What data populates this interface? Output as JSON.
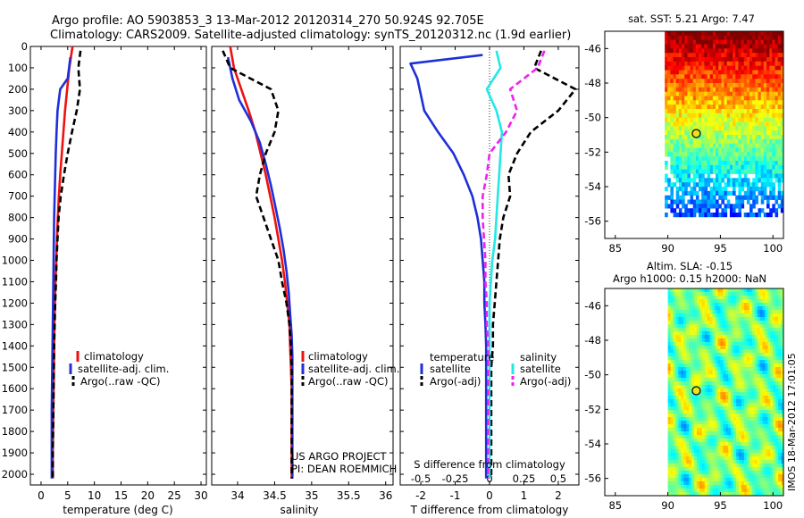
{
  "figure": {
    "title_line1": "Argo profile: AO 5903853_3 13-Mar-2012 20120314_270 50.924S 92.705E",
    "title_line2": "Climatology: CARS2009. Satellite-adjusted climatology: synTS_20120312.nc (1.9d earlier)",
    "project_line1": "US ARGO PROJECT",
    "project_line2": "PI: DEAN ROEMMICH",
    "side_stamp": "IMOS 18-Mar-2012 17:01:05"
  },
  "colors": {
    "climatology": "#ee1111",
    "satellite": "#1f2fd8",
    "argo": "#000000",
    "sal_satellite": "#22e8e8",
    "sal_argo": "#ee22ee",
    "axis": "#000000"
  },
  "chart_data": [
    {
      "id": "temperature",
      "type": "line",
      "xlabel": "temperature (deg C)",
      "ylabel": "",
      "xlim": [
        -2,
        31
      ],
      "ylim": [
        2050,
        0
      ],
      "xticks": [
        0,
        5,
        10,
        15,
        20,
        25,
        30
      ],
      "yticks": [
        0,
        100,
        200,
        300,
        400,
        500,
        600,
        700,
        800,
        900,
        1000,
        1100,
        1200,
        1300,
        1400,
        1500,
        1600,
        1700,
        1800,
        1900,
        2000
      ],
      "legend": [
        "climatology",
        "satellite-adj. clim.",
        "Argo(..raw -QC)"
      ],
      "series": [
        {
          "name": "climatology",
          "style": "solid",
          "x": [
            5.9,
            5.3,
            4.9,
            4.5,
            4.2,
            3.9,
            3.6,
            3.35,
            3.15,
            3.0,
            2.85,
            2.7,
            2.6,
            2.5,
            2.45,
            2.4,
            2.35,
            2.3,
            2.25,
            2.2,
            2.2
          ],
          "y": [
            0,
            100,
            200,
            300,
            400,
            500,
            600,
            700,
            800,
            900,
            1000,
            1100,
            1200,
            1300,
            1400,
            1500,
            1600,
            1700,
            1800,
            1900,
            2020
          ]
        },
        {
          "name": "satellite-adj. clim.",
          "style": "solid",
          "x": [
            5.5,
            5.0,
            3.6,
            3.1,
            2.9,
            2.75,
            2.65,
            2.55,
            2.45,
            2.4,
            2.35,
            2.3,
            2.25,
            2.2,
            2.15,
            2.1,
            2.05,
            2.0,
            2.0,
            2.0
          ],
          "y": [
            50,
            150,
            200,
            300,
            400,
            500,
            600,
            700,
            800,
            900,
            1000,
            1100,
            1200,
            1300,
            1400,
            1500,
            1600,
            1700,
            1900,
            2020
          ]
        },
        {
          "name": "Argo(..raw -QC)",
          "style": "dashed",
          "x": [
            7.4,
            7.0,
            7.3,
            6.7,
            5.8,
            5.0,
            4.3,
            3.7,
            3.3,
            3.1,
            2.9,
            2.8,
            2.65,
            2.55,
            2.45,
            2.4,
            2.35,
            2.3,
            2.25,
            2.2,
            2.2
          ],
          "y": [
            20,
            100,
            200,
            300,
            400,
            500,
            600,
            700,
            800,
            900,
            1000,
            1100,
            1200,
            1300,
            1400,
            1500,
            1600,
            1700,
            1800,
            1900,
            2020
          ]
        }
      ]
    },
    {
      "id": "salinity",
      "type": "line",
      "xlabel": "salinity",
      "xlim": [
        33.65,
        36.1
      ],
      "ylim": [
        2050,
        0
      ],
      "xticks": [
        34,
        34.5,
        35,
        35.5,
        36
      ],
      "legend": [
        "climatology",
        "satellite-adj. clim.",
        "Argo(..raw -QC)"
      ],
      "series": [
        {
          "name": "climatology",
          "style": "solid",
          "x": [
            33.9,
            33.95,
            34.05,
            34.15,
            34.24,
            34.31,
            34.38,
            34.44,
            34.5,
            34.55,
            34.6,
            34.64,
            34.67,
            34.7,
            34.71,
            34.72,
            34.73,
            34.73,
            34.73,
            34.73,
            34.73
          ],
          "y": [
            0,
            100,
            200,
            300,
            400,
            500,
            600,
            700,
            800,
            900,
            1000,
            1100,
            1200,
            1300,
            1400,
            1500,
            1600,
            1700,
            1800,
            1900,
            2020
          ]
        },
        {
          "name": "satellite-adj. clim.",
          "style": "solid",
          "x": [
            33.87,
            33.93,
            34.02,
            34.18,
            34.3,
            34.38,
            34.45,
            34.51,
            34.57,
            34.62,
            34.66,
            34.69,
            34.71,
            34.73,
            34.74,
            34.74,
            34.74,
            34.74,
            34.74,
            34.74
          ],
          "y": [
            50,
            150,
            250,
            350,
            450,
            550,
            650,
            750,
            850,
            950,
            1050,
            1150,
            1250,
            1350,
            1450,
            1550,
            1650,
            1750,
            1900,
            2020
          ]
        },
        {
          "name": "Argo(..raw -QC)",
          "style": "dashed",
          "x": [
            33.8,
            33.9,
            34.45,
            34.55,
            34.5,
            34.38,
            34.3,
            34.25,
            34.35,
            34.45,
            34.55,
            34.6,
            34.66,
            34.7,
            34.72,
            34.73,
            34.73,
            34.73,
            34.73,
            34.73
          ],
          "y": [
            20,
            100,
            200,
            300,
            400,
            500,
            600,
            700,
            800,
            900,
            1000,
            1100,
            1200,
            1300,
            1400,
            1500,
            1600,
            1700,
            1800,
            2020
          ]
        }
      ]
    },
    {
      "id": "difference",
      "type": "line",
      "xlabel": "T difference from climatology",
      "xlabel_top": "S difference from climatology",
      "xlim": [
        -2.6,
        2.6
      ],
      "ylim": [
        2050,
        0
      ],
      "xticks": [
        -2,
        -1,
        0,
        1,
        2
      ],
      "xticks_top": [
        "-0.5",
        "-0.25",
        "0",
        "0.25",
        "0.5"
      ],
      "legend_temperature_title": "temperature",
      "legend_salinity_title": "salinity",
      "legend_temperature": [
        "satellite",
        "Argo(-adj)"
      ],
      "legend_salinity": [
        "satellite",
        "Argo(-adj)"
      ],
      "series": [
        {
          "name": "T satellite",
          "style": "solid",
          "x": [
            -0.2,
            -2.3,
            -2.1,
            -1.9,
            -1.5,
            -1.05,
            -0.75,
            -0.5,
            -0.35,
            -0.25,
            -0.2,
            -0.15,
            -0.15,
            -0.12,
            -0.1,
            -0.1,
            -0.1,
            -0.1,
            -0.1,
            -0.1
          ],
          "y": [
            40,
            80,
            150,
            300,
            400,
            500,
            600,
            700,
            800,
            900,
            1000,
            1100,
            1200,
            1300,
            1400,
            1500,
            1600,
            1700,
            1800,
            2020
          ]
        },
        {
          "name": "T Argo(-adj)",
          "style": "dashed",
          "x": [
            1.5,
            1.3,
            2.5,
            2.0,
            1.2,
            0.8,
            0.55,
            0.6,
            0.4,
            0.3,
            0.25,
            0.2,
            0.15,
            0.1,
            0.1,
            0.05,
            0.05,
            0.05,
            0.05,
            0.05
          ],
          "y": [
            20,
            100,
            200,
            300,
            400,
            500,
            600,
            700,
            800,
            900,
            1000,
            1100,
            1200,
            1300,
            1400,
            1500,
            1600,
            1700,
            1800,
            2020
          ]
        },
        {
          "name": "S satellite",
          "style": "solid",
          "x": [
            0.05,
            0.08,
            -0.02,
            0.05,
            0.09,
            0.08,
            0.07,
            0.06,
            0.05,
            0.04,
            0.02,
            0.01,
            0.0,
            0.0,
            0.0,
            0.0,
            0.0,
            0.0,
            0.0,
            0.0
          ],
          "y": [
            20,
            100,
            200,
            300,
            400,
            500,
            600,
            700,
            800,
            900,
            1000,
            1100,
            1200,
            1300,
            1400,
            1500,
            1600,
            1700,
            1800,
            2020
          ]
        },
        {
          "name": "S Argo(-adj)",
          "style": "dashed",
          "x": [
            0.4,
            0.35,
            0.15,
            0.2,
            0.12,
            0.0,
            -0.02,
            -0.05,
            -0.05,
            -0.04,
            -0.03,
            -0.03,
            -0.02,
            -0.02,
            -0.01,
            -0.01,
            -0.01,
            -0.01,
            -0.01,
            -0.01
          ],
          "y": [
            20,
            100,
            200,
            300,
            400,
            500,
            600,
            700,
            800,
            900,
            1000,
            1100,
            1200,
            1300,
            1400,
            1500,
            1600,
            1700,
            1800,
            2020
          ]
        }
      ]
    },
    {
      "id": "sst_map",
      "type": "heatmap",
      "title": "sat. SST: 5.21  Argo: 7.47",
      "xlim": [
        84,
        101
      ],
      "ylim": [
        -57,
        -45
      ],
      "xticks": [
        85,
        90,
        95,
        100
      ],
      "yticks": [
        -46,
        -48,
        -50,
        -52,
        -54,
        -56
      ],
      "float_lon": 92.705,
      "float_lat": -50.924
    },
    {
      "id": "sla_map",
      "type": "heatmap",
      "title_line1": "Altim. SLA: -0.15",
      "title_line2": "Argo h1000: 0.15 h2000: NaN",
      "xlim": [
        84,
        101
      ],
      "ylim": [
        -57,
        -45
      ],
      "xticks": [
        85,
        90,
        95,
        100
      ],
      "yticks": [
        -46,
        -48,
        -50,
        -52,
        -54,
        -56
      ],
      "float_lon": 92.705,
      "float_lat": -50.924
    }
  ]
}
